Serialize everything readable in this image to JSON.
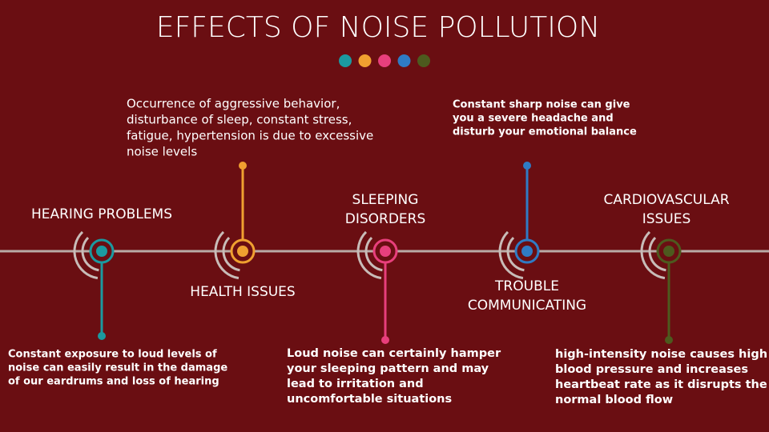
{
  "title": "EFFECTS OF NOISE POLLUTION",
  "nodes": [
    {
      "label": [
        "HEARING PROBLEMS"
      ],
      "color": "#1b9aa0",
      "description": [
        "Constant exposure to loud levels of",
        "noise can easily result in the damage",
        "of our eardrums and loss of hearing"
      ]
    },
    {
      "label": [
        "HEALTH ISSUES"
      ],
      "color": "#f0a030",
      "description": [
        "Occurrence of aggressive behavior,",
        "disturbance of sleep, constant stress,",
        "fatigue, hypertension is due to excessive",
        "noise levels"
      ]
    },
    {
      "label": [
        "SLEEPING",
        "DISORDERS"
      ],
      "color": "#e83f7c",
      "description": [
        "Loud noise can certainly hamper",
        "your sleeping pattern and may",
        "lead to irritation and",
        "uncomfortable situations"
      ]
    },
    {
      "label": [
        "TROUBLE",
        "COMMUNICATING"
      ],
      "color": "#2f7bc4",
      "description": [
        "Constant sharp noise can give",
        "you a severe headache and",
        "disturb your emotional balance"
      ]
    },
    {
      "label": [
        "CARDIOVASCULAR",
        "ISSUES"
      ],
      "color": "#4d5a1e",
      "description": [
        "high-intensity noise causes high",
        "blood pressure and increases",
        "heartbeat rate as it disrupts the",
        "normal blood flow"
      ]
    }
  ]
}
